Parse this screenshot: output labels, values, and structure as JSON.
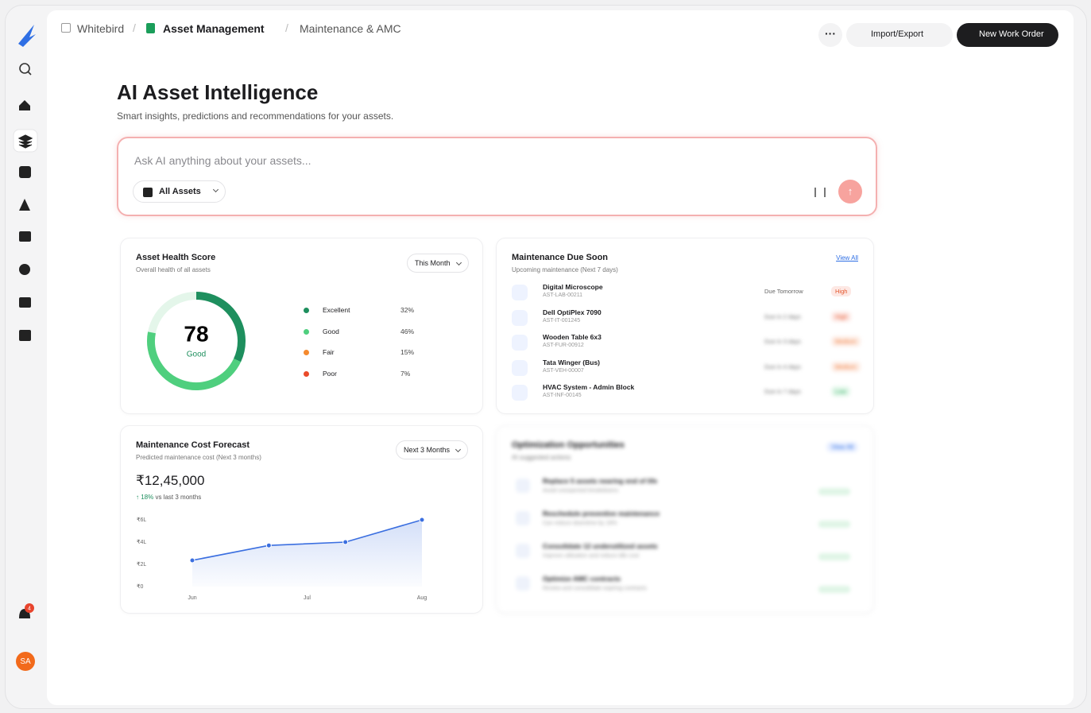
{
  "breadcrumb": {
    "root": "Whitebird",
    "module": "Asset Management",
    "page": "Maintenance & AMC"
  },
  "toolbar": {
    "import_export": "Import/Export",
    "new_work_order": "New Work Order"
  },
  "header": {
    "title": "AI Asset Intelligence",
    "subtitle": "Smart insights, predictions and recommendations for your assets."
  },
  "ask": {
    "placeholder": "Ask AI anything about your assets...",
    "scope": "All Assets"
  },
  "health": {
    "title": "Asset Health Score",
    "subtitle": "Overall health of all assets",
    "period": "This Month",
    "score": 78,
    "score_label": "Good",
    "segments": [
      {
        "name": "Excellent",
        "value": 32,
        "value_label": "32%",
        "color": "#1e8f5e"
      },
      {
        "name": "Good",
        "value": 46,
        "value_label": "46%",
        "color": "#4fcf7e"
      },
      {
        "name": "Fair",
        "value": 15,
        "value_label": "15%",
        "color": "#f58a2e"
      },
      {
        "name": "Poor",
        "value": 7,
        "value_label": "7%",
        "color": "#ea4b2a"
      }
    ]
  },
  "due": {
    "title": "Maintenance Due Soon",
    "subtitle": "Upcoming maintenance (Next 7 days)",
    "view_all": "View All",
    "rows": [
      {
        "name": "Digital Microscope",
        "id": "AST-LAB-00211",
        "due": "Due Tomorrow",
        "priority": "High"
      },
      {
        "name": "Dell OptiPlex 7090",
        "id": "AST-IT-001245",
        "due": "Due in 2 days",
        "priority": "High"
      },
      {
        "name": "Wooden Table 6x3",
        "id": "AST-FUR-00912",
        "due": "Due in 3 days",
        "priority": "Medium"
      },
      {
        "name": "Tata Winger (Bus)",
        "id": "AST-VEH-00007",
        "due": "Due in 4 days",
        "priority": "Medium"
      },
      {
        "name": "HVAC System - Admin Block",
        "id": "AST-INF-00145",
        "due": "Due in 7 days",
        "priority": "Low"
      }
    ]
  },
  "forecast": {
    "period": "Next 3 Months",
    "total": "₹12,45,000",
    "change": "18%",
    "change_note": "vs last 3 months"
  },
  "chart_data": {
    "type": "line",
    "title": "Maintenance Cost Forecast",
    "subtitle": "Predicted maintenance cost (Next 3 months)",
    "x": [
      0,
      1,
      2,
      3
    ],
    "values": [
      236000,
      370000,
      400000,
      600000
    ],
    "color": "#3b6fe0",
    "xlim": [
      0,
      3
    ],
    "xticks": [
      {
        "value": 0,
        "label": "Jun"
      },
      {
        "value": 1.5,
        "label": "Jul"
      },
      {
        "value": 3,
        "label": "Aug"
      }
    ],
    "ylim": [
      0,
      600000
    ],
    "yticks": [
      {
        "value": 0,
        "label": "₹0"
      },
      {
        "value": 200000,
        "label": "₹2L"
      },
      {
        "value": 400000,
        "label": "₹4L"
      },
      {
        "value": 600000,
        "label": "₹6L"
      }
    ]
  },
  "optimization": {
    "title": "Optimization Opportunities",
    "subtitle": "AI suggested actions",
    "view_all": "View All",
    "rows": [
      {
        "title": "Replace 5 assets nearing end of life",
        "note": "Avoid unexpected breakdowns"
      },
      {
        "title": "Reschedule preventive maintenance",
        "note": "Can reduce downtime by 18%"
      },
      {
        "title": "Consolidate 12 underutilized assets",
        "note": "Improve utilization and reduce idle cost"
      },
      {
        "title": "Optimize AMC contracts",
        "note": "Review and consolidate expiring contracts"
      }
    ]
  },
  "notifications": {
    "count": 4
  },
  "user": {
    "initials": "SA"
  }
}
